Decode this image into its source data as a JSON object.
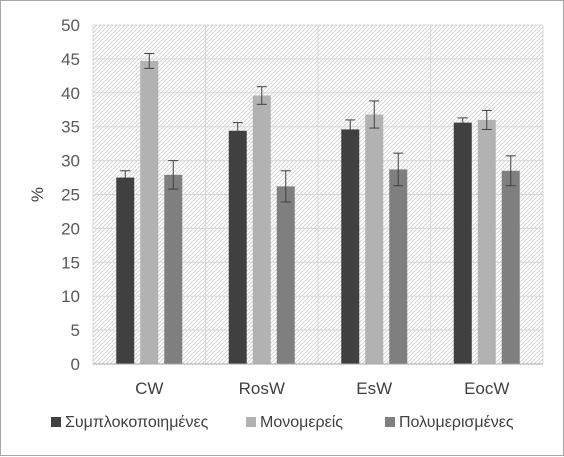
{
  "chart_data": {
    "type": "bar",
    "title": "",
    "xlabel": "",
    "ylabel": "%",
    "ylim": [
      0,
      50
    ],
    "yticks": [
      0,
      5,
      10,
      15,
      20,
      25,
      30,
      35,
      40,
      45,
      50
    ],
    "grid": true,
    "legend_position": "bottom",
    "categories": [
      "CW",
      "RosW",
      "EsW",
      "EocW"
    ],
    "series": [
      {
        "name": "Συμπλοκοποιημένες",
        "color": "#404040",
        "values": [
          27.5,
          34.4,
          34.6,
          35.6
        ],
        "errors": [
          1.0,
          1.2,
          1.4,
          0.7
        ]
      },
      {
        "name": "Μονομερείς",
        "color": "#b2b2b2",
        "values": [
          44.7,
          39.6,
          36.8,
          36.0
        ],
        "errors": [
          1.1,
          1.3,
          2.0,
          1.4
        ]
      },
      {
        "name": "Πολυμερισμένες",
        "color": "#7f7f7f",
        "values": [
          27.9,
          26.2,
          28.7,
          28.5
        ],
        "errors": [
          2.1,
          2.3,
          2.4,
          2.2
        ]
      }
    ],
    "plot_background": "hatched-light-gray"
  }
}
